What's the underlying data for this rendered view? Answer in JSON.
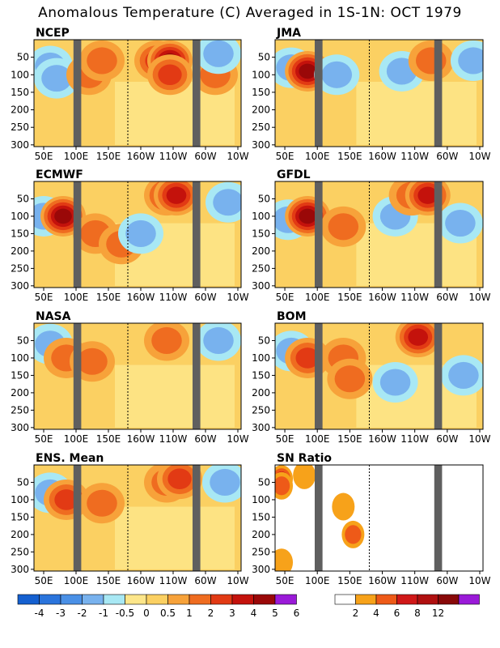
{
  "title": "Anomalous Temperature (C) Averaged in 1S-1N: OCT 1979",
  "chart_data": [
    {
      "type": "heatmap",
      "title": "NCEP",
      "x_ticks": [
        "50E",
        "100E",
        "150E",
        "160W",
        "110W",
        "60W",
        "10W"
      ],
      "y_ticks": [
        "50",
        "100",
        "150",
        "200",
        "250",
        "300"
      ],
      "ylim": [
        300,
        0
      ],
      "colorbar": "anomaly",
      "features": [
        {
          "lon": 60,
          "depth": 75,
          "value": -1.5
        },
        {
          "lon": 70,
          "depth": 110,
          "value": -1.5
        },
        {
          "lon": 120,
          "depth": 100,
          "value": 1.5
        },
        {
          "lon": 140,
          "depth": 60,
          "value": 1
        },
        {
          "lon": 225,
          "depth": 60,
          "value": 2
        },
        {
          "lon": 245,
          "depth": 60,
          "value": 4
        },
        {
          "lon": 245,
          "depth": 100,
          "value": 2
        },
        {
          "lon": 315,
          "depth": 100,
          "value": 1
        },
        {
          "lon": 320,
          "depth": 40,
          "value": -1
        }
      ]
    },
    {
      "type": "heatmap",
      "title": "JMA",
      "x_ticks": [
        "50E",
        "100E",
        "150E",
        "160W",
        "110W",
        "60W",
        "10W"
      ],
      "y_ticks": [
        "50",
        "100",
        "150",
        "200",
        "250",
        "300"
      ],
      "ylim": [
        300,
        0
      ],
      "colorbar": "anomaly",
      "features": [
        {
          "lon": 60,
          "depth": 80,
          "value": -1
        },
        {
          "lon": 85,
          "depth": 90,
          "value": 4
        },
        {
          "lon": 130,
          "depth": 100,
          "value": -1
        },
        {
          "lon": 230,
          "depth": 90,
          "value": -1.5
        },
        {
          "lon": 275,
          "depth": 60,
          "value": 1
        },
        {
          "lon": 340,
          "depth": 60,
          "value": -1.5
        }
      ]
    },
    {
      "type": "heatmap",
      "title": "ECMWF",
      "x_ticks": [
        "50E",
        "100E",
        "150E",
        "160W",
        "110W",
        "60W",
        "10W"
      ],
      "y_ticks": [
        "50",
        "100",
        "150",
        "200",
        "250",
        "300"
      ],
      "ylim": [
        300,
        0
      ],
      "colorbar": "anomaly",
      "features": [
        {
          "lon": 50,
          "depth": 100,
          "value": -1.5
        },
        {
          "lon": 80,
          "depth": 100,
          "value": 4
        },
        {
          "lon": 130,
          "depth": 150,
          "value": 1
        },
        {
          "lon": 170,
          "depth": 180,
          "value": 1.5
        },
        {
          "lon": 240,
          "depth": 40,
          "value": 2
        },
        {
          "lon": 255,
          "depth": 40,
          "value": 3
        },
        {
          "lon": 200,
          "depth": 150,
          "value": -1
        },
        {
          "lon": 335,
          "depth": 60,
          "value": -1
        }
      ]
    },
    {
      "type": "heatmap",
      "title": "GFDL",
      "x_ticks": [
        "50E",
        "100E",
        "150E",
        "160W",
        "110W",
        "60W",
        "10W"
      ],
      "y_ticks": [
        "50",
        "100",
        "150",
        "200",
        "250",
        "300"
      ],
      "ylim": [
        300,
        0
      ],
      "colorbar": "anomaly",
      "features": [
        {
          "lon": 55,
          "depth": 110,
          "value": -1
        },
        {
          "lon": 85,
          "depth": 100,
          "value": 4
        },
        {
          "lon": 140,
          "depth": 130,
          "value": 1
        },
        {
          "lon": 220,
          "depth": 100,
          "value": -1.5
        },
        {
          "lon": 245,
          "depth": 40,
          "value": 1.5
        },
        {
          "lon": 270,
          "depth": 40,
          "value": 3
        },
        {
          "lon": 320,
          "depth": 120,
          "value": -1.5
        }
      ]
    },
    {
      "type": "heatmap",
      "title": "NASA",
      "x_ticks": [
        "50E",
        "100E",
        "150E",
        "160W",
        "110W",
        "60W",
        "10W"
      ],
      "y_ticks": [
        "50",
        "100",
        "150",
        "200",
        "250",
        "300"
      ],
      "ylim": [
        300,
        0
      ],
      "colorbar": "anomaly",
      "features": [
        {
          "lon": 60,
          "depth": 60,
          "value": -1
        },
        {
          "lon": 85,
          "depth": 100,
          "value": 1.5
        },
        {
          "lon": 125,
          "depth": 110,
          "value": 1
        },
        {
          "lon": 240,
          "depth": 50,
          "value": 1
        },
        {
          "lon": 320,
          "depth": 50,
          "value": -1
        }
      ]
    },
    {
      "type": "heatmap",
      "title": "BOM",
      "x_ticks": [
        "50E",
        "100E",
        "150E",
        "160W",
        "110W",
        "60W",
        "10W"
      ],
      "y_ticks": [
        "50",
        "100",
        "150",
        "200",
        "250",
        "300"
      ],
      "ylim": [
        300,
        0
      ],
      "colorbar": "anomaly",
      "features": [
        {
          "lon": 60,
          "depth": 80,
          "value": -1.5
        },
        {
          "lon": 85,
          "depth": 100,
          "value": 2
        },
        {
          "lon": 140,
          "depth": 100,
          "value": 1.5
        },
        {
          "lon": 150,
          "depth": 160,
          "value": 1
        },
        {
          "lon": 220,
          "depth": 170,
          "value": -1.5
        },
        {
          "lon": 255,
          "depth": 40,
          "value": 3
        },
        {
          "lon": 325,
          "depth": 150,
          "value": -1
        }
      ]
    },
    {
      "type": "heatmap",
      "title": "ENS. Mean",
      "x_ticks": [
        "50E",
        "100E",
        "150E",
        "160W",
        "110W",
        "60W",
        "10W"
      ],
      "y_ticks": [
        "50",
        "100",
        "150",
        "200",
        "250",
        "300"
      ],
      "ylim": [
        300,
        0
      ],
      "colorbar": "anomaly",
      "features": [
        {
          "lon": 60,
          "depth": 80,
          "value": -1
        },
        {
          "lon": 85,
          "depth": 100,
          "value": 2
        },
        {
          "lon": 140,
          "depth": 110,
          "value": 1
        },
        {
          "lon": 240,
          "depth": 50,
          "value": 1.5
        },
        {
          "lon": 260,
          "depth": 40,
          "value": 2
        },
        {
          "lon": 330,
          "depth": 50,
          "value": -1
        }
      ]
    },
    {
      "type": "heatmap",
      "title": "SN Ratio",
      "x_ticks": [
        "50E",
        "100E",
        "150E",
        "160W",
        "110W",
        "60W",
        "10W"
      ],
      "y_ticks": [
        "50",
        "100",
        "150",
        "200",
        "250",
        "300"
      ],
      "ylim": [
        300,
        0
      ],
      "colorbar": "sn",
      "features": [
        {
          "lon": 45,
          "depth": 40,
          "value": 6
        },
        {
          "lon": 45,
          "depth": 60,
          "value": 4
        },
        {
          "lon": 80,
          "depth": 30,
          "value": 2
        },
        {
          "lon": 155,
          "depth": 200,
          "value": 4
        },
        {
          "lon": 140,
          "depth": 120,
          "value": 2
        },
        {
          "lon": 45,
          "depth": 280,
          "value": 2
        }
      ]
    }
  ],
  "colorbars": {
    "anomaly": {
      "labels": [
        "-4",
        "-3",
        "-2",
        "-1",
        "-0.5",
        "0",
        "0.5",
        "1",
        "2",
        "3",
        "4",
        "5",
        "6"
      ],
      "colors": [
        "#1560d0",
        "#2a74dc",
        "#4a90e6",
        "#78b2ee",
        "#a8e8f4",
        "#fde68a",
        "#fbd062",
        "#f7a23a",
        "#ef6c20",
        "#e23a14",
        "#c4120c",
        "#9a0808",
        "#9a1ad8"
      ]
    },
    "sn": {
      "labels": [
        "2",
        "4",
        "6",
        "8",
        "12"
      ],
      "colors": [
        "#ffffff",
        "#f7a21a",
        "#ee5a18",
        "#d01818",
        "#b01010",
        "#880808",
        "#9a1ad8"
      ]
    }
  },
  "colors": {
    "land_mask": "#5f5f5f",
    "date_line": "#000000"
  }
}
